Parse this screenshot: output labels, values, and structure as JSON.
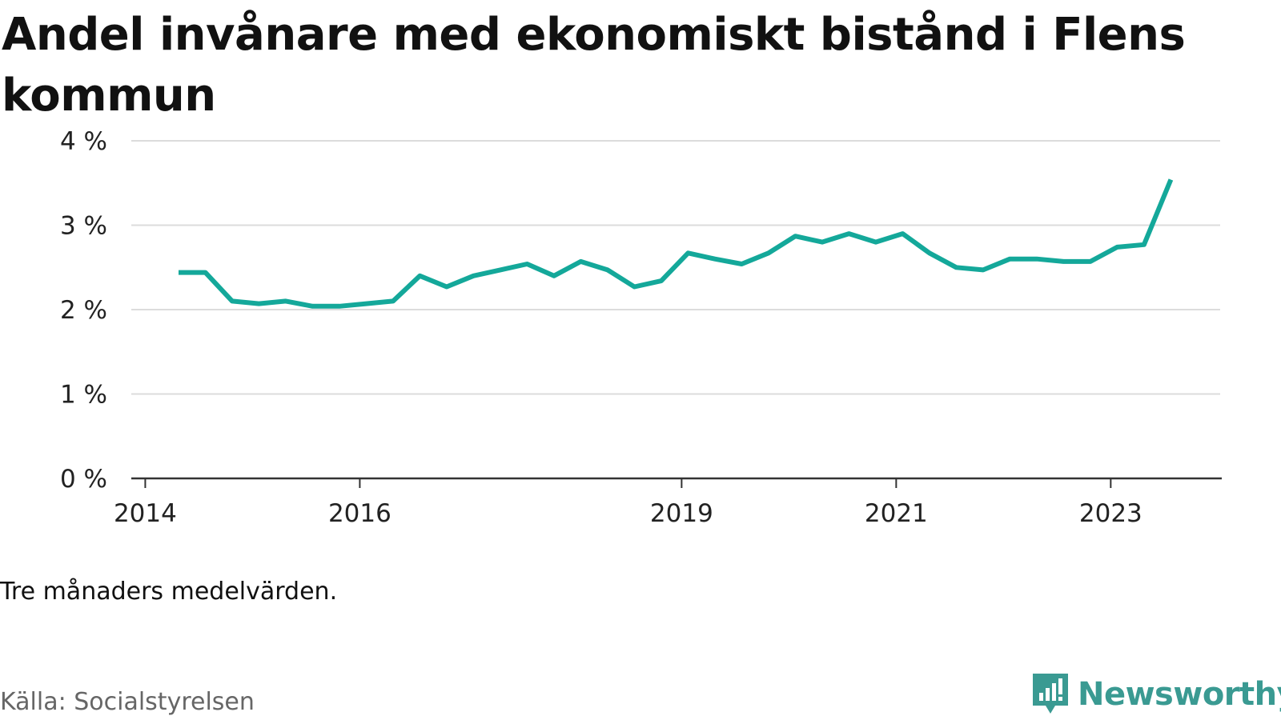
{
  "title": "Andel invånare med ekonomiskt bistånd i Flens kommun",
  "note": "Tre månaders medelvärden.",
  "source": "Källa: Socialstyrelsen",
  "brand": {
    "name": "Newsworthy",
    "color": "#3a9a92"
  },
  "chart_data": {
    "type": "line",
    "title": "Andel invånare med ekonomiskt bistånd i Flens kommun",
    "xlabel": "",
    "ylabel": "",
    "ylim": [
      0,
      4
    ],
    "y_ticks": [
      {
        "value": 0,
        "label": "0 %"
      },
      {
        "value": 1,
        "label": "1 %"
      },
      {
        "value": 2,
        "label": "2 %"
      },
      {
        "value": 3,
        "label": "3 %"
      },
      {
        "value": 4,
        "label": "4 %"
      }
    ],
    "x_ticks": [
      {
        "value": 2014.0,
        "label": "2014"
      },
      {
        "value": 2016.0,
        "label": "2016"
      },
      {
        "value": 2019.0,
        "label": "2019"
      },
      {
        "value": 2021.0,
        "label": "2021"
      },
      {
        "value": 2023.0,
        "label": "2023"
      }
    ],
    "xlim": [
      2013.87,
      2024.02
    ],
    "grid": true,
    "color": "#14a89a",
    "series": [
      {
        "x": [
          2014.31,
          2014.56,
          2014.81,
          2015.06,
          2015.31,
          2015.56,
          2015.81,
          2016.06,
          2016.31,
          2016.56,
          2016.81,
          2017.06,
          2017.31,
          2017.56,
          2017.81,
          2018.06,
          2018.31,
          2018.56,
          2018.81,
          2019.06,
          2019.31,
          2019.56,
          2019.81,
          2020.06,
          2020.31,
          2020.56,
          2020.81,
          2021.06,
          2021.31,
          2021.56,
          2021.81,
          2022.06,
          2022.31,
          2022.56,
          2022.81,
          2023.06,
          2023.31,
          2023.56
        ],
        "values": [
          2.44,
          2.44,
          2.1,
          2.07,
          2.1,
          2.04,
          2.04,
          2.07,
          2.1,
          2.4,
          2.27,
          2.4,
          2.47,
          2.54,
          2.4,
          2.57,
          2.47,
          2.27,
          2.34,
          2.67,
          2.6,
          2.54,
          2.67,
          2.87,
          2.8,
          2.9,
          2.8,
          2.9,
          2.67,
          2.5,
          2.47,
          2.6,
          2.6,
          2.57,
          2.57,
          2.74,
          2.77,
          3.54
        ]
      }
    ]
  }
}
